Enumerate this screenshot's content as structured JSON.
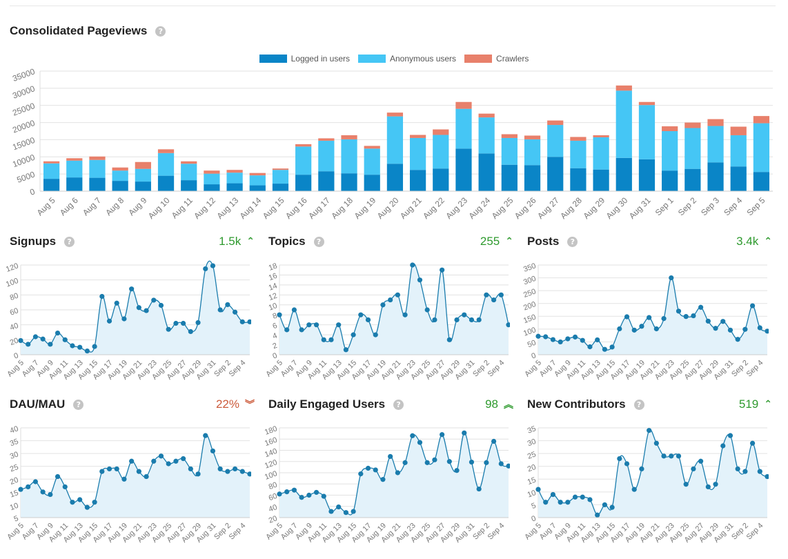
{
  "colors": {
    "logged": "#0a85c7",
    "anonymous": "#45c6f5",
    "crawlers": "#e8806b",
    "line": "#1a7cad",
    "area": "#e3f2fa",
    "up": "#2e9a2e",
    "down": "#cc5a3a",
    "grid": "#e2e2e2",
    "axis_text": "#777777"
  },
  "pageviews": {
    "title": "Consolidated Pageviews",
    "help": "?"
  },
  "chart_data": [
    {
      "type": "bar",
      "stacked": true,
      "title": "Consolidated Pageviews",
      "categories": [
        "Aug 5",
        "Aug 6",
        "Aug 7",
        "Aug 8",
        "Aug 9",
        "Aug 10",
        "Aug 11",
        "Aug 12",
        "Aug 13",
        "Aug 14",
        "Aug 15",
        "Aug 16",
        "Aug 17",
        "Aug 18",
        "Aug 19",
        "Aug 20",
        "Aug 21",
        "Aug 22",
        "Aug 23",
        "Aug 24",
        "Aug 25",
        "Aug 26",
        "Aug 27",
        "Aug 28",
        "Aug 29",
        "Aug 30",
        "Aug 31",
        "Sep 1",
        "Sep 2",
        "Sep 3",
        "Sep 4",
        "Sep 5"
      ],
      "series": [
        {
          "name": "Logged in users",
          "values": [
            3600,
            4000,
            3900,
            3000,
            2800,
            4500,
            3200,
            2000,
            2300,
            1700,
            2200,
            4800,
            5800,
            5200,
            4800,
            8000,
            6200,
            6600,
            12400,
            11000,
            7700,
            7600,
            10000,
            6700,
            6300,
            9700,
            9300,
            6000,
            6500,
            8400,
            7200,
            5600
          ]
        },
        {
          "name": "Anonymous users",
          "values": [
            4500,
            4900,
            5200,
            3000,
            3700,
            6600,
            4800,
            3100,
            3100,
            2900,
            4000,
            8200,
            8900,
            9900,
            7600,
            13800,
            9300,
            9800,
            11600,
            10500,
            7800,
            7500,
            9300,
            8000,
            9400,
            19600,
            15800,
            11500,
            11900,
            10600,
            9100,
            14200
          ]
        },
        {
          "name": "Crawlers",
          "values": [
            600,
            700,
            1000,
            900,
            2000,
            1100,
            700,
            900,
            800,
            700,
            400,
            700,
            700,
            1200,
            800,
            1100,
            900,
            1600,
            2000,
            1100,
            1100,
            1100,
            1300,
            1100,
            600,
            1500,
            900,
            1400,
            1600,
            2000,
            2500,
            2100
          ]
        }
      ],
      "ylim": [
        0,
        35000
      ],
      "yticks": [
        "0",
        "5000",
        "10000",
        "15000",
        "20000",
        "25000",
        "30000",
        "35000"
      ],
      "legend": "top-center",
      "grid": true
    },
    {
      "type": "area",
      "title": "Signups",
      "x": [
        "Aug 5",
        "Aug 6",
        "Aug 7",
        "Aug 8",
        "Aug 9",
        "Aug 10",
        "Aug 11",
        "Aug 12",
        "Aug 13",
        "Aug 14",
        "Aug 15",
        "Aug 16",
        "Aug 17",
        "Aug 18",
        "Aug 19",
        "Aug 20",
        "Aug 21",
        "Aug 22",
        "Aug 23",
        "Aug 24",
        "Aug 25",
        "Aug 26",
        "Aug 27",
        "Aug 28",
        "Aug 29",
        "Aug 30",
        "Aug 31",
        "Sep 1",
        "Sep 2",
        "Sep 3",
        "Sep 4",
        "Sep 5"
      ],
      "values": [
        19,
        14,
        24,
        21,
        14,
        29,
        20,
        12,
        10,
        5,
        11,
        78,
        45,
        69,
        48,
        88,
        63,
        59,
        73,
        66,
        34,
        42,
        42,
        31,
        43,
        115,
        119,
        60,
        67,
        57,
        44,
        44
      ],
      "ylim": [
        0,
        120
      ],
      "yticks": [
        "0",
        "20",
        "40",
        "60",
        "80",
        "100",
        "120"
      ],
      "xticks": [
        "Aug 5",
        "Aug 7",
        "Aug 9",
        "Aug 11",
        "Aug 13",
        "Aug 15",
        "Aug 17",
        "Aug 19",
        "Aug 21",
        "Aug 23",
        "Aug 25",
        "Aug 27",
        "Aug 29",
        "Aug 31",
        "Sep 2",
        "Sep 4"
      ],
      "summary": "1.5k",
      "trend": "up"
    },
    {
      "type": "area",
      "title": "Topics",
      "x": [
        "Aug 5",
        "Aug 6",
        "Aug 7",
        "Aug 8",
        "Aug 9",
        "Aug 10",
        "Aug 11",
        "Aug 12",
        "Aug 13",
        "Aug 14",
        "Aug 15",
        "Aug 16",
        "Aug 17",
        "Aug 18",
        "Aug 19",
        "Aug 20",
        "Aug 21",
        "Aug 22",
        "Aug 23",
        "Aug 24",
        "Aug 25",
        "Aug 26",
        "Aug 27",
        "Aug 28",
        "Aug 29",
        "Aug 30",
        "Aug 31",
        "Sep 1",
        "Sep 2",
        "Sep 3",
        "Sep 4",
        "Sep 5"
      ],
      "values": [
        8,
        5,
        9,
        5,
        6,
        6,
        3,
        3,
        6,
        1,
        4,
        8,
        7,
        4,
        10,
        11,
        12,
        8,
        18,
        15,
        9,
        7,
        17,
        3,
        7,
        8,
        7,
        7,
        12,
        11,
        12,
        6
      ],
      "ylim": [
        0,
        18
      ],
      "yticks": [
        "0",
        "2",
        "4",
        "6",
        "8",
        "10",
        "12",
        "14",
        "16",
        "18"
      ],
      "xticks": [
        "Aug 5",
        "Aug 7",
        "Aug 9",
        "Aug 11",
        "Aug 13",
        "Aug 15",
        "Aug 17",
        "Aug 19",
        "Aug 21",
        "Aug 23",
        "Aug 25",
        "Aug 27",
        "Aug 29",
        "Aug 31",
        "Sep 2",
        "Sep 4"
      ],
      "summary": "255",
      "trend": "up"
    },
    {
      "type": "area",
      "title": "Posts",
      "x": [
        "Aug 5",
        "Aug 6",
        "Aug 7",
        "Aug 8",
        "Aug 9",
        "Aug 10",
        "Aug 11",
        "Aug 12",
        "Aug 13",
        "Aug 14",
        "Aug 15",
        "Aug 16",
        "Aug 17",
        "Aug 18",
        "Aug 19",
        "Aug 20",
        "Aug 21",
        "Aug 22",
        "Aug 23",
        "Aug 24",
        "Aug 25",
        "Aug 26",
        "Aug 27",
        "Aug 28",
        "Aug 29",
        "Aug 30",
        "Aug 31",
        "Sep 1",
        "Sep 2",
        "Sep 3",
        "Sep 4",
        "Sep 5"
      ],
      "values": [
        72,
        70,
        59,
        50,
        62,
        69,
        56,
        31,
        58,
        21,
        30,
        101,
        148,
        96,
        111,
        145,
        101,
        141,
        300,
        170,
        149,
        152,
        185,
        131,
        103,
        130,
        96,
        60,
        99,
        191,
        105,
        92
      ],
      "ylim": [
        0,
        350
      ],
      "yticks": [
        "0",
        "50",
        "100",
        "150",
        "200",
        "250",
        "300",
        "350"
      ],
      "xticks": [
        "Aug 5",
        "Aug 7",
        "Aug 9",
        "Aug 11",
        "Aug 13",
        "Aug 15",
        "Aug 17",
        "Aug 19",
        "Aug 21",
        "Aug 23",
        "Aug 25",
        "Aug 27",
        "Aug 29",
        "Aug 31",
        "Sep 2",
        "Sep 4"
      ],
      "summary": "3.4k",
      "trend": "up"
    },
    {
      "type": "area",
      "title": "DAU/MAU",
      "x": [
        "Aug 5",
        "Aug 6",
        "Aug 7",
        "Aug 8",
        "Aug 9",
        "Aug 10",
        "Aug 11",
        "Aug 12",
        "Aug 13",
        "Aug 14",
        "Aug 15",
        "Aug 16",
        "Aug 17",
        "Aug 18",
        "Aug 19",
        "Aug 20",
        "Aug 21",
        "Aug 22",
        "Aug 23",
        "Aug 24",
        "Aug 25",
        "Aug 26",
        "Aug 27",
        "Aug 28",
        "Aug 29",
        "Aug 30",
        "Aug 31",
        "Sep 1",
        "Sep 2",
        "Sep 3",
        "Sep 4",
        "Sep 5"
      ],
      "values": [
        16,
        17,
        19,
        15,
        14,
        21,
        17,
        11,
        12,
        9,
        11,
        23,
        24,
        24,
        20,
        27,
        23,
        21,
        27,
        29,
        26,
        27,
        28,
        24,
        22,
        37,
        31,
        24,
        23,
        24,
        23,
        22
      ],
      "ylim": [
        5,
        40
      ],
      "yticks": [
        "5",
        "10",
        "15",
        "20",
        "25",
        "30",
        "35",
        "40"
      ],
      "xticks": [
        "Aug 5",
        "Aug 7",
        "Aug 9",
        "Aug 11",
        "Aug 13",
        "Aug 15",
        "Aug 17",
        "Aug 19",
        "Aug 21",
        "Aug 23",
        "Aug 25",
        "Aug 27",
        "Aug 29",
        "Aug 31",
        "Sep 2",
        "Sep 4"
      ],
      "summary": "22%",
      "trend": "down-strong"
    },
    {
      "type": "area",
      "title": "Daily Engaged Users",
      "x": [
        "Aug 5",
        "Aug 6",
        "Aug 7",
        "Aug 8",
        "Aug 9",
        "Aug 10",
        "Aug 11",
        "Aug 12",
        "Aug 13",
        "Aug 14",
        "Aug 15",
        "Aug 16",
        "Aug 17",
        "Aug 18",
        "Aug 19",
        "Aug 20",
        "Aug 21",
        "Aug 22",
        "Aug 23",
        "Aug 24",
        "Aug 25",
        "Aug 26",
        "Aug 27",
        "Aug 28",
        "Aug 29",
        "Aug 30",
        "Aug 31",
        "Sep 1",
        "Sep 2",
        "Sep 3",
        "Sep 4",
        "Sep 5"
      ],
      "values": [
        62,
        66,
        69,
        56,
        60,
        65,
        58,
        31,
        39,
        29,
        31,
        98,
        108,
        105,
        88,
        129,
        100,
        118,
        166,
        154,
        118,
        123,
        168,
        120,
        104,
        171,
        119,
        71,
        118,
        156,
        116,
        112
      ],
      "ylim": [
        20,
        180
      ],
      "yticks": [
        "20",
        "40",
        "60",
        "80",
        "100",
        "120",
        "140",
        "160",
        "180"
      ],
      "xticks": [
        "Aug 5",
        "Aug 7",
        "Aug 9",
        "Aug 11",
        "Aug 13",
        "Aug 15",
        "Aug 17",
        "Aug 19",
        "Aug 21",
        "Aug 23",
        "Aug 25",
        "Aug 27",
        "Aug 29",
        "Aug 31",
        "Sep 2",
        "Sep 4"
      ],
      "summary": "98",
      "trend": "up-strong"
    },
    {
      "type": "area",
      "title": "New Contributors",
      "x": [
        "Aug 5",
        "Aug 6",
        "Aug 7",
        "Aug 8",
        "Aug 9",
        "Aug 10",
        "Aug 11",
        "Aug 12",
        "Aug 13",
        "Aug 14",
        "Aug 15",
        "Aug 16",
        "Aug 17",
        "Aug 18",
        "Aug 19",
        "Aug 20",
        "Aug 21",
        "Aug 22",
        "Aug 23",
        "Aug 24",
        "Aug 25",
        "Aug 26",
        "Aug 27",
        "Aug 28",
        "Aug 29",
        "Aug 30",
        "Aug 31",
        "Sep 1",
        "Sep 2",
        "Sep 3",
        "Sep 4",
        "Sep 5"
      ],
      "values": [
        11,
        6,
        9,
        6,
        6,
        8,
        8,
        7,
        1,
        5,
        4,
        23,
        21,
        11,
        19,
        34,
        29,
        24,
        24,
        24,
        13,
        19,
        22,
        12,
        13,
        28,
        32,
        19,
        18,
        29,
        18,
        16
      ],
      "ylim": [
        0,
        35
      ],
      "yticks": [
        "0",
        "5",
        "10",
        "15",
        "20",
        "25",
        "30",
        "35"
      ],
      "xticks": [
        "Aug 5",
        "Aug 7",
        "Aug 9",
        "Aug 11",
        "Aug 13",
        "Aug 15",
        "Aug 17",
        "Aug 19",
        "Aug 21",
        "Aug 23",
        "Aug 25",
        "Aug 27",
        "Aug 29",
        "Aug 31",
        "Sep 2",
        "Sep 4"
      ],
      "summary": "519",
      "trend": "up"
    }
  ]
}
